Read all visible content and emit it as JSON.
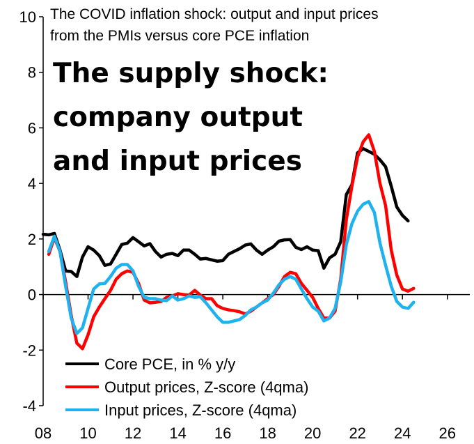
{
  "chart_data": {
    "type": "line",
    "subtitle": [
      "The COVID inflation shock: output and input prices",
      "from the PMIs versus core PCE inflation"
    ],
    "title": [
      "The supply shock:",
      "company output",
      "and input prices"
    ],
    "xlabel": "",
    "ylabel": "",
    "xlim": [
      2008,
      2027
    ],
    "ylim": [
      -4,
      10
    ],
    "xticks": [
      8,
      10,
      12,
      14,
      16,
      18,
      20,
      22,
      24,
      26
    ],
    "xtick_labels": [
      "08",
      "10",
      "12",
      "14",
      "16",
      "18",
      "20",
      "22",
      "24",
      "26"
    ],
    "yticks": [
      -4,
      -2,
      0,
      2,
      4,
      6,
      8,
      10
    ],
    "ytick_labels": [
      "-4",
      "-2",
      "0",
      "2",
      "4",
      "6",
      "8",
      "10"
    ],
    "legend_position": "bottom-left",
    "series": [
      {
        "name": "Core PCE, in % y/y",
        "color": "#000000",
        "points": [
          [
            2008.0,
            2.17
          ],
          [
            2008.25,
            2.15
          ],
          [
            2008.5,
            2.2
          ],
          [
            2008.75,
            1.6
          ],
          [
            2009.0,
            0.85
          ],
          [
            2009.25,
            0.83
          ],
          [
            2009.5,
            0.65
          ],
          [
            2009.75,
            1.35
          ],
          [
            2010.0,
            1.72
          ],
          [
            2010.25,
            1.6
          ],
          [
            2010.5,
            1.4
          ],
          [
            2010.75,
            1.05
          ],
          [
            2011.0,
            1.1
          ],
          [
            2011.25,
            1.45
          ],
          [
            2011.5,
            1.8
          ],
          [
            2011.75,
            1.85
          ],
          [
            2012.0,
            2.05
          ],
          [
            2012.25,
            1.9
          ],
          [
            2012.5,
            1.75
          ],
          [
            2012.75,
            1.83
          ],
          [
            2013.0,
            1.55
          ],
          [
            2013.25,
            1.35
          ],
          [
            2013.5,
            1.45
          ],
          [
            2013.75,
            1.48
          ],
          [
            2014.0,
            1.4
          ],
          [
            2014.25,
            1.6
          ],
          [
            2014.5,
            1.6
          ],
          [
            2014.75,
            1.45
          ],
          [
            2015.0,
            1.28
          ],
          [
            2015.25,
            1.3
          ],
          [
            2015.5,
            1.25
          ],
          [
            2015.75,
            1.2
          ],
          [
            2016.0,
            1.22
          ],
          [
            2016.25,
            1.45
          ],
          [
            2016.5,
            1.55
          ],
          [
            2016.75,
            1.65
          ],
          [
            2017.0,
            1.78
          ],
          [
            2017.25,
            1.82
          ],
          [
            2017.5,
            1.6
          ],
          [
            2017.75,
            1.45
          ],
          [
            2018.0,
            1.6
          ],
          [
            2018.25,
            1.72
          ],
          [
            2018.5,
            1.92
          ],
          [
            2018.75,
            1.97
          ],
          [
            2019.0,
            1.98
          ],
          [
            2019.25,
            1.7
          ],
          [
            2019.5,
            1.62
          ],
          [
            2019.75,
            1.72
          ],
          [
            2020.0,
            1.6
          ],
          [
            2020.25,
            1.58
          ],
          [
            2020.5,
            0.95
          ],
          [
            2020.75,
            1.32
          ],
          [
            2021.0,
            1.45
          ],
          [
            2021.25,
            1.9
          ],
          [
            2021.5,
            3.6
          ],
          [
            2021.75,
            3.95
          ],
          [
            2022.0,
            5.1
          ],
          [
            2022.25,
            5.25
          ],
          [
            2022.5,
            5.15
          ],
          [
            2022.75,
            5.05
          ],
          [
            2023.0,
            4.85
          ],
          [
            2023.25,
            4.6
          ],
          [
            2023.5,
            3.9
          ],
          [
            2023.75,
            3.15
          ],
          [
            2024.0,
            2.85
          ],
          [
            2024.25,
            2.65
          ]
        ]
      },
      {
        "name": "Output prices, Z-score (4qma)",
        "color": "#ff0000",
        "points": [
          [
            2008.25,
            1.45
          ],
          [
            2008.5,
            2.05
          ],
          [
            2008.75,
            1.55
          ],
          [
            2009.0,
            0.45
          ],
          [
            2009.25,
            -0.75
          ],
          [
            2009.5,
            -1.75
          ],
          [
            2009.75,
            -1.95
          ],
          [
            2010.0,
            -1.45
          ],
          [
            2010.25,
            -0.8
          ],
          [
            2010.5,
            -0.45
          ],
          [
            2010.75,
            -0.15
          ],
          [
            2011.0,
            0.15
          ],
          [
            2011.25,
            0.55
          ],
          [
            2011.5,
            0.75
          ],
          [
            2011.75,
            0.85
          ],
          [
            2012.0,
            0.8
          ],
          [
            2012.25,
            0.4
          ],
          [
            2012.5,
            -0.2
          ],
          [
            2012.75,
            -0.3
          ],
          [
            2013.0,
            -0.28
          ],
          [
            2013.25,
            -0.25
          ],
          [
            2013.5,
            -0.1
          ],
          [
            2013.75,
            -0.05
          ],
          [
            2014.0,
            0.03
          ],
          [
            2014.25,
            0.0
          ],
          [
            2014.5,
            -0.02
          ],
          [
            2014.75,
            0.15
          ],
          [
            2015.0,
            -0.02
          ],
          [
            2015.25,
            -0.15
          ],
          [
            2015.5,
            -0.15
          ],
          [
            2015.75,
            -0.4
          ],
          [
            2016.0,
            -0.5
          ],
          [
            2016.25,
            -0.55
          ],
          [
            2016.5,
            -0.58
          ],
          [
            2016.75,
            -0.62
          ],
          [
            2017.0,
            -0.7
          ],
          [
            2017.25,
            -0.6
          ],
          [
            2017.5,
            -0.45
          ],
          [
            2017.75,
            -0.3
          ],
          [
            2018.0,
            -0.15
          ],
          [
            2018.25,
            0.0
          ],
          [
            2018.5,
            0.3
          ],
          [
            2018.75,
            0.65
          ],
          [
            2019.0,
            0.8
          ],
          [
            2019.25,
            0.75
          ],
          [
            2019.5,
            0.4
          ],
          [
            2019.75,
            0.15
          ],
          [
            2020.0,
            -0.1
          ],
          [
            2020.25,
            -0.5
          ],
          [
            2020.5,
            -0.85
          ],
          [
            2020.75,
            -0.85
          ],
          [
            2021.0,
            -0.6
          ],
          [
            2021.25,
            0.55
          ],
          [
            2021.5,
            2.7
          ],
          [
            2021.75,
            3.9
          ],
          [
            2022.0,
            4.95
          ],
          [
            2022.25,
            5.5
          ],
          [
            2022.5,
            5.75
          ],
          [
            2022.75,
            5.15
          ],
          [
            2023.0,
            4.0
          ],
          [
            2023.25,
            3.2
          ],
          [
            2023.5,
            1.6
          ],
          [
            2023.75,
            0.7
          ],
          [
            2024.0,
            0.2
          ],
          [
            2024.25,
            0.12
          ],
          [
            2024.5,
            0.22
          ]
        ]
      },
      {
        "name": "Input prices, Z-score (4qma)",
        "color": "#1fb2ee",
        "points": [
          [
            2008.25,
            1.55
          ],
          [
            2008.5,
            2.1
          ],
          [
            2008.75,
            1.55
          ],
          [
            2009.0,
            0.3
          ],
          [
            2009.25,
            -0.85
          ],
          [
            2009.5,
            -1.4
          ],
          [
            2009.75,
            -1.2
          ],
          [
            2010.0,
            -0.5
          ],
          [
            2010.25,
            0.2
          ],
          [
            2010.5,
            0.38
          ],
          [
            2010.75,
            0.4
          ],
          [
            2011.0,
            0.65
          ],
          [
            2011.25,
            0.95
          ],
          [
            2011.5,
            1.08
          ],
          [
            2011.75,
            1.08
          ],
          [
            2012.0,
            0.85
          ],
          [
            2012.25,
            0.3
          ],
          [
            2012.5,
            -0.1
          ],
          [
            2012.75,
            -0.15
          ],
          [
            2013.0,
            -0.15
          ],
          [
            2013.25,
            -0.2
          ],
          [
            2013.5,
            -0.22
          ],
          [
            2013.75,
            -0.05
          ],
          [
            2014.0,
            -0.2
          ],
          [
            2014.25,
            -0.15
          ],
          [
            2014.5,
            -0.05
          ],
          [
            2014.75,
            -0.1
          ],
          [
            2015.0,
            -0.08
          ],
          [
            2015.25,
            -0.3
          ],
          [
            2015.5,
            -0.55
          ],
          [
            2015.75,
            -0.8
          ],
          [
            2016.0,
            -1.0
          ],
          [
            2016.25,
            -1.0
          ],
          [
            2016.5,
            -0.95
          ],
          [
            2016.75,
            -0.9
          ],
          [
            2017.0,
            -0.75
          ],
          [
            2017.25,
            -0.55
          ],
          [
            2017.5,
            -0.45
          ],
          [
            2017.75,
            -0.3
          ],
          [
            2018.0,
            -0.2
          ],
          [
            2018.25,
            0.05
          ],
          [
            2018.5,
            0.35
          ],
          [
            2018.75,
            0.55
          ],
          [
            2019.0,
            0.65
          ],
          [
            2019.25,
            0.55
          ],
          [
            2019.5,
            0.2
          ],
          [
            2019.75,
            -0.15
          ],
          [
            2020.0,
            -0.45
          ],
          [
            2020.25,
            -0.6
          ],
          [
            2020.5,
            -0.95
          ],
          [
            2020.75,
            -0.85
          ],
          [
            2021.0,
            -0.5
          ],
          [
            2021.25,
            0.45
          ],
          [
            2021.5,
            1.8
          ],
          [
            2021.75,
            2.55
          ],
          [
            2022.0,
            3.0
          ],
          [
            2022.25,
            3.25
          ],
          [
            2022.5,
            3.35
          ],
          [
            2022.75,
            2.95
          ],
          [
            2023.0,
            1.85
          ],
          [
            2023.25,
            1.05
          ],
          [
            2023.5,
            0.3
          ],
          [
            2023.75,
            -0.25
          ],
          [
            2024.0,
            -0.45
          ],
          [
            2024.25,
            -0.5
          ],
          [
            2024.5,
            -0.28
          ]
        ]
      }
    ]
  }
}
